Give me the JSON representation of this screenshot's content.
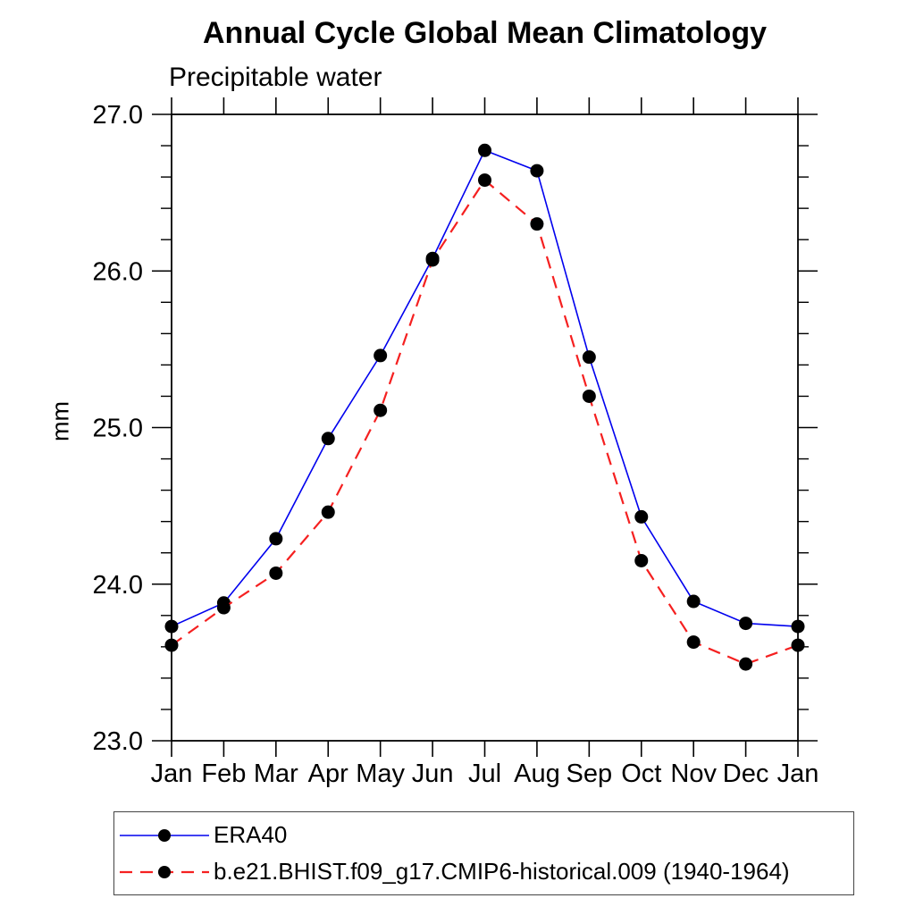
{
  "chart": {
    "title": "Annual Cycle Global Mean Climatology",
    "subtitle": "Precipitable water",
    "ylabel": "mm"
  },
  "chart_data": {
    "type": "line",
    "title": "Annual Cycle Global Mean Climatology",
    "subtitle": "Precipitable water",
    "xlabel": "",
    "ylabel": "mm",
    "categories": [
      "Jan",
      "Feb",
      "Mar",
      "Apr",
      "May",
      "Jun",
      "Jul",
      "Aug",
      "Sep",
      "Oct",
      "Nov",
      "Dec",
      "Jan"
    ],
    "series": [
      {
        "name": "ERA40",
        "color": "#0000ee",
        "line_style": "solid",
        "line_width": 1.6,
        "marker": "filled-circle",
        "marker_color": "#000000",
        "values": [
          23.73,
          23.88,
          24.29,
          24.93,
          25.46,
          26.08,
          26.77,
          26.64,
          25.45,
          24.43,
          23.89,
          23.75,
          23.73
        ]
      },
      {
        "name": "b.e21.BHIST.f09_g17.CMIP6-historical.009 (1940-1964)",
        "color": "#f52020",
        "line_style": "dashed",
        "line_width": 2.2,
        "marker": "filled-circle",
        "marker_color": "#000000",
        "values": [
          23.61,
          23.85,
          24.07,
          24.46,
          25.11,
          26.07,
          26.58,
          26.3,
          25.2,
          24.15,
          23.63,
          23.49,
          23.61
        ]
      }
    ],
    "ylim": [
      23.0,
      27.0
    ],
    "ytick_labels": [
      "23.0",
      "24.0",
      "25.0",
      "26.0",
      "27.0"
    ],
    "ytick_values": [
      23.0,
      24.0,
      25.0,
      26.0,
      27.0
    ],
    "ytick_minor_step": 0.2,
    "grid": false,
    "frame": "box-with-outward-ticks",
    "legend_position": "bottom-left-box"
  }
}
